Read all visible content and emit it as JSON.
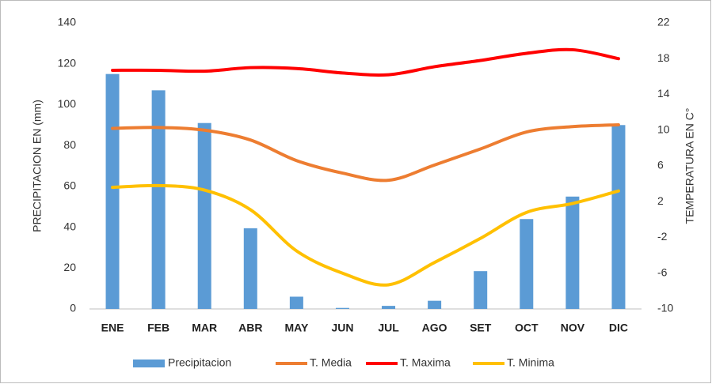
{
  "chart_data": {
    "type": "bar-line",
    "categories": [
      "ENE",
      "FEB",
      "MAR",
      "ABR",
      "MAY",
      "JUN",
      "JUL",
      "AGO",
      "SET",
      "OCT",
      "NOV",
      "DIC"
    ],
    "y_label": "PRECIPITACION EN (mm)",
    "y2_label": "TEMPERATURA EN C°",
    "series": [
      {
        "name": "Precipitacion",
        "type": "bar",
        "color": "#5b9bd5",
        "values": [
          115,
          107,
          91,
          39.5,
          6,
          0.5,
          1.5,
          4,
          18.5,
          44,
          55,
          90
        ]
      },
      {
        "name": "T. Media",
        "type": "line",
        "axis": "y2",
        "color": "#ed7d31",
        "values": [
          10.2,
          10.3,
          10.0,
          8.9,
          6.6,
          5.2,
          4.4,
          6.1,
          7.9,
          9.8,
          10.4,
          10.6
        ]
      },
      {
        "name": "T. Maxima",
        "type": "line",
        "axis": "y2",
        "color": "#ff0000",
        "values": [
          16.7,
          16.7,
          16.6,
          17.0,
          16.9,
          16.4,
          16.2,
          17.1,
          17.8,
          18.6,
          19.0,
          18.0
        ]
      },
      {
        "name": "T. Minima",
        "type": "line",
        "axis": "y2",
        "color": "#ffc000",
        "values": [
          3.6,
          3.8,
          3.3,
          1.1,
          -3.5,
          -6.0,
          -7.3,
          -4.8,
          -2.1,
          0.8,
          1.8,
          3.2
        ]
      }
    ],
    "ylim": [
      0,
      140
    ],
    "yticks": [
      0,
      20,
      40,
      60,
      80,
      100,
      120,
      140
    ],
    "y2lim": [
      -10,
      22
    ],
    "y2ticks": [
      -10,
      -6,
      -2,
      2,
      6,
      10,
      14,
      18,
      22
    ],
    "grid": false,
    "legend": "bottom"
  }
}
